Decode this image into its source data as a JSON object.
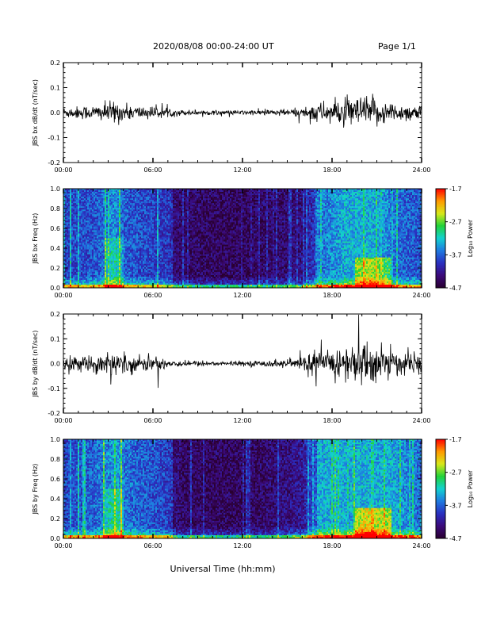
{
  "header": {
    "title": "2020/08/08  00:00-24:00 UT",
    "page": "Page 1/1"
  },
  "colors": {
    "trace": "#000000",
    "colormap": [
      "#2a0030",
      "#3b0a7a",
      "#2a2fc0",
      "#1f7ae0",
      "#12d2d0",
      "#22d23a",
      "#d8e81a",
      "#ff9a00",
      "#ff0000"
    ]
  },
  "xlabel": "Universal Time (hh:mm)",
  "chart_data": [
    {
      "type": "line",
      "ylabel": "JBS bx dB/dt (nT/sec)",
      "ylim": [
        -0.2,
        0.2
      ],
      "yticks": [
        "0.2",
        "0.1",
        "0.0",
        "-0.1",
        "-0.2"
      ],
      "xticks": [
        "00:00",
        "06:00",
        "12:00",
        "18:00",
        "24:00"
      ],
      "xlim": [
        0,
        24
      ],
      "envelope": {
        "hours": [
          0,
          1,
          2,
          3,
          3.5,
          4,
          5,
          6,
          7,
          7.5,
          8,
          9,
          10,
          11,
          12,
          13,
          14,
          15,
          16,
          16.5,
          17,
          17.5,
          18,
          19,
          20,
          20.5,
          21,
          22,
          23,
          24
        ],
        "amplitude": [
          0.012,
          0.014,
          0.016,
          0.022,
          0.026,
          0.018,
          0.015,
          0.013,
          0.01,
          0.008,
          0.006,
          0.006,
          0.005,
          0.005,
          0.005,
          0.006,
          0.007,
          0.008,
          0.01,
          0.018,
          0.024,
          0.022,
          0.025,
          0.03,
          0.034,
          0.038,
          0.03,
          0.022,
          0.018,
          0.016
        ]
      }
    },
    {
      "type": "heatmap",
      "ylabel": "JBS bx Freq (Hz)",
      "ylim": [
        0.0,
        1.0
      ],
      "yticks": [
        "1.0",
        "0.8",
        "0.6",
        "0.4",
        "0.2",
        "0.0"
      ],
      "xticks": [
        "00:00",
        "06:00",
        "12:00",
        "18:00",
        "24:00"
      ],
      "xlim": [
        0,
        24
      ],
      "colorbar": {
        "label": "Log₁₀ Power",
        "ticks": [
          "-1.7",
          "-2.7",
          "-3.7",
          "-4.7"
        ],
        "range": [
          -4.7,
          -1.7
        ]
      }
    },
    {
      "type": "line",
      "ylabel": "JBS by dB/dt (nT/sec)",
      "ylim": [
        -0.2,
        0.2
      ],
      "yticks": [
        "0.2",
        "0.1",
        "0.0",
        "-0.1",
        "-0.2"
      ],
      "xticks": [
        "00:00",
        "06:00",
        "12:00",
        "18:00",
        "24:00"
      ],
      "xlim": [
        0,
        24
      ],
      "envelope": {
        "hours": [
          0,
          1,
          2,
          3,
          3.5,
          4,
          5,
          6,
          7,
          7.5,
          8,
          9,
          10,
          11,
          12,
          13,
          14,
          15,
          16,
          16.5,
          17,
          17.5,
          18,
          19,
          20,
          20.5,
          21,
          22,
          23,
          24
        ],
        "amplitude": [
          0.014,
          0.016,
          0.018,
          0.024,
          0.03,
          0.022,
          0.018,
          0.016,
          0.012,
          0.009,
          0.006,
          0.006,
          0.005,
          0.005,
          0.005,
          0.006,
          0.008,
          0.01,
          0.014,
          0.024,
          0.03,
          0.03,
          0.034,
          0.04,
          0.045,
          0.05,
          0.042,
          0.03,
          0.024,
          0.02
        ]
      }
    },
    {
      "type": "heatmap",
      "ylabel": "JBS by Freq (Hz)",
      "ylim": [
        0.0,
        1.0
      ],
      "yticks": [
        "1.0",
        "0.8",
        "0.6",
        "0.4",
        "0.2",
        "0.0"
      ],
      "xticks": [
        "00:00",
        "06:00",
        "12:00",
        "18:00",
        "24:00"
      ],
      "xlim": [
        0,
        24
      ],
      "colorbar": {
        "label": "Log₁₀ Power",
        "ticks": [
          "-1.7",
          "-2.7",
          "-3.7",
          "-4.7"
        ],
        "range": [
          -4.7,
          -1.7
        ]
      }
    }
  ]
}
